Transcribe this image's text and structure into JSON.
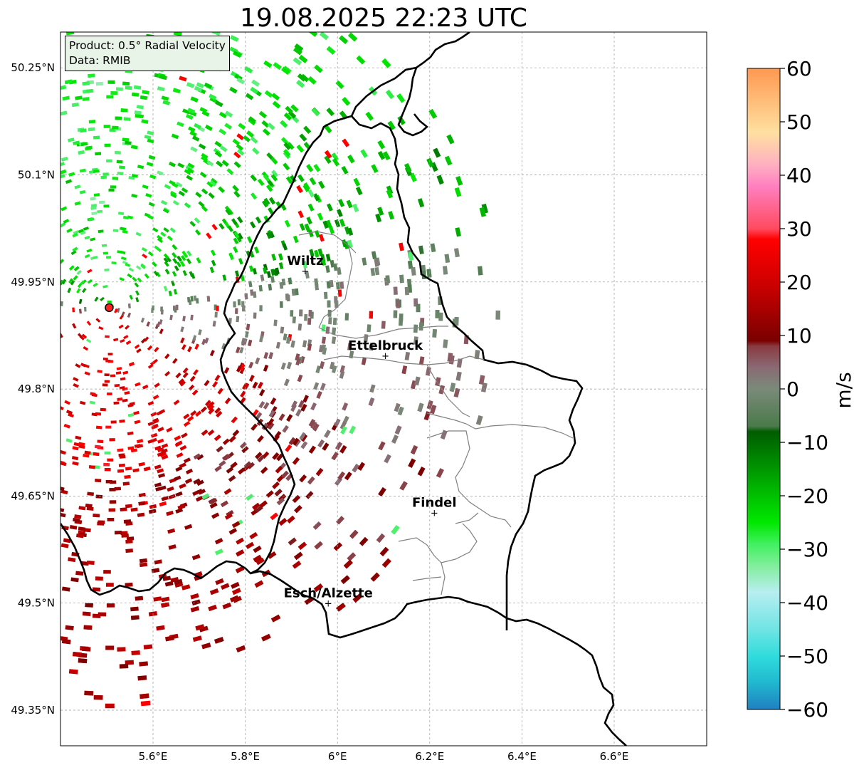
{
  "title": "19.08.2025 22:23 UTC",
  "info": {
    "product": "Product: 0.5° Radial Velocity",
    "data_source": "Data: RMIB"
  },
  "map": {
    "lon_range": [
      5.4,
      6.8
    ],
    "lat_range": [
      49.3,
      50.3
    ],
    "lon_ticks": [
      {
        "value": 5.6,
        "label": "5.6°E"
      },
      {
        "value": 5.8,
        "label": "5.8°E"
      },
      {
        "value": 6.0,
        "label": "6°E"
      },
      {
        "value": 6.2,
        "label": "6.2°E"
      },
      {
        "value": 6.4,
        "label": "6.4°E"
      },
      {
        "value": 6.6,
        "label": "6.6°E"
      }
    ],
    "lat_ticks": [
      {
        "value": 50.25,
        "label": "50.25°N"
      },
      {
        "value": 50.1,
        "label": "50.1°N"
      },
      {
        "value": 49.95,
        "label": "49.95°N"
      },
      {
        "value": 49.8,
        "label": "49.8°N"
      },
      {
        "value": 49.65,
        "label": "49.65°N"
      },
      {
        "value": 49.5,
        "label": "49.5°N"
      },
      {
        "value": 49.35,
        "label": "49.35°N"
      }
    ],
    "radar_site": {
      "lon": 5.505,
      "lat": 49.914
    },
    "cities": [
      {
        "name": "Wiltz",
        "lon": 5.93,
        "lat": 49.966
      },
      {
        "name": "Ettelbruck",
        "lon": 6.104,
        "lat": 49.847
      },
      {
        "name": "Findel",
        "lon": 6.21,
        "lat": 49.627
      },
      {
        "name": "Esch/Alzette",
        "lon": 5.98,
        "lat": 49.5
      }
    ],
    "grid": true
  },
  "colorbar": {
    "unit": "m/s",
    "range": [
      -60,
      60
    ],
    "ticks": [
      60,
      50,
      40,
      30,
      20,
      10,
      0,
      -10,
      -20,
      -30,
      -40,
      -50,
      -60
    ],
    "tick_labels": [
      "60",
      "50",
      "40",
      "30",
      "20",
      "10",
      "0",
      "−10",
      "−20",
      "−30",
      "−40",
      "−50",
      "−60"
    ],
    "stops": [
      {
        "value": -60,
        "color": "#2080c0"
      },
      {
        "value": -55,
        "color": "#20b8d0"
      },
      {
        "value": -50,
        "color": "#30dcdc"
      },
      {
        "value": -45,
        "color": "#70e4e4"
      },
      {
        "value": -38,
        "color": "#b8eef0"
      },
      {
        "value": -33,
        "color": "#80ee9a"
      },
      {
        "value": -29,
        "color": "#40f060"
      },
      {
        "value": -25,
        "color": "#00e800"
      },
      {
        "value": -18,
        "color": "#00b000"
      },
      {
        "value": -8,
        "color": "#005c00"
      },
      {
        "value": -7,
        "color": "#4a7a4a"
      },
      {
        "value": 0,
        "color": "#7a8a7a"
      },
      {
        "value": 4,
        "color": "#8a6a74"
      },
      {
        "value": 8,
        "color": "#8a3a40"
      },
      {
        "value": 9,
        "color": "#7a0000"
      },
      {
        "value": 20,
        "color": "#d00000"
      },
      {
        "value": 28,
        "color": "#ff0000"
      },
      {
        "value": 30,
        "color": "#ff4a60"
      },
      {
        "value": 38,
        "color": "#ff80c0"
      },
      {
        "value": 42,
        "color": "#ffb0c0"
      },
      {
        "value": 48,
        "color": "#ffe0a0"
      },
      {
        "value": 60,
        "color": "#ff9850"
      }
    ]
  }
}
